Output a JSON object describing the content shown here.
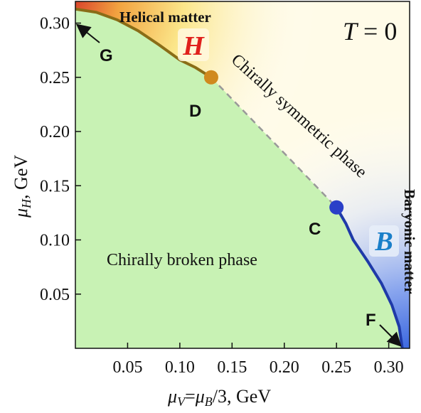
{
  "chart_data": {
    "type": "line",
    "title": "",
    "xlabel": "μV=μB/3, GeV",
    "ylabel": "μH, GeV",
    "xlim": [
      0,
      0.32
    ],
    "ylim": [
      0,
      0.32
    ],
    "x_ticks": [
      "0.05",
      "0.10",
      "0.15",
      "0.20",
      "0.25",
      "0.30"
    ],
    "y_ticks": [
      "0.05",
      "0.10",
      "0.15",
      "0.20",
      "0.25",
      "0.30"
    ],
    "x_tick_values": [
      0.05,
      0.1,
      0.15,
      0.2,
      0.25,
      0.3
    ],
    "y_tick_values": [
      0.05,
      0.1,
      0.15,
      0.2,
      0.25,
      0.3
    ],
    "annotations": {
      "temperature": "T = 0",
      "helical_matter": "Helical matter",
      "chirally_symmetric": "Chirally symmetric phase",
      "baryonic_matter": "Baryonic matter",
      "chirally_broken": "Chirally broken phase",
      "H_symbol": "H",
      "B_symbol": "B"
    },
    "points": [
      {
        "label": "G",
        "x": 0.0,
        "y": 0.313
      },
      {
        "label": "D",
        "x": 0.13,
        "y": 0.25,
        "color": "#d08a1e"
      },
      {
        "label": "C",
        "x": 0.25,
        "y": 0.13,
        "color": "#2a3fc8"
      },
      {
        "label": "F",
        "x": 0.313,
        "y": 0.0
      }
    ],
    "series": [
      {
        "color": "#8a6d17",
        "style": "solid",
        "x": [
          0.0,
          0.02,
          0.04,
          0.06,
          0.08,
          0.1,
          0.115,
          0.13
        ],
        "y": [
          0.313,
          0.31,
          0.303,
          0.293,
          0.28,
          0.266,
          0.259,
          0.25
        ]
      },
      {
        "color": "#999999",
        "style": "dashed",
        "x": [
          0.13,
          0.25
        ],
        "y": [
          0.25,
          0.13
        ]
      },
      {
        "color": "#1f3aa8",
        "style": "solid",
        "x": [
          0.25,
          0.259,
          0.266,
          0.28,
          0.293,
          0.303,
          0.31,
          0.313
        ],
        "y": [
          0.13,
          0.115,
          0.1,
          0.08,
          0.06,
          0.04,
          0.02,
          0.0
        ]
      }
    ],
    "colors": {
      "broken_phase": "#c8f2b4",
      "helical": "#d9442b",
      "baryonic": "#3c68e0",
      "H_color": "#e0201c",
      "B_color": "#1a7fc9"
    }
  }
}
